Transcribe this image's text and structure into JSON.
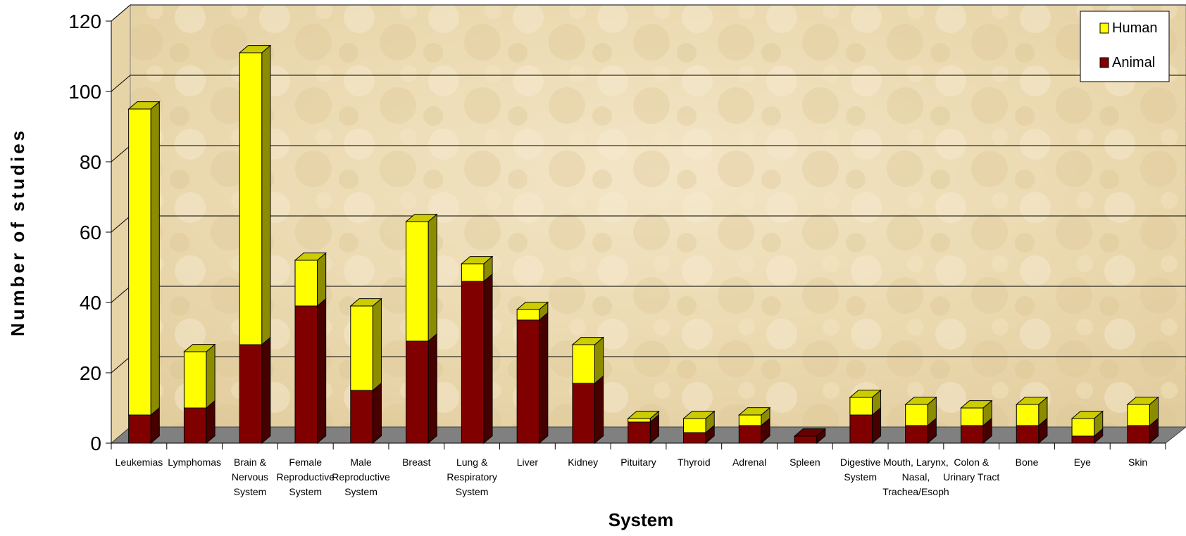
{
  "chart_data": {
    "type": "bar",
    "stacked": true,
    "three_d": true,
    "xlabel": "System",
    "ylabel": "Number of studies",
    "ylim": [
      0,
      120
    ],
    "yticks": [
      "0",
      "20",
      "40",
      "60",
      "80",
      "100",
      "120"
    ],
    "grid": true,
    "legend_position": "top-right",
    "categories": [
      [
        "Leukemias"
      ],
      [
        "Lymphomas"
      ],
      [
        "Brain &",
        "Nervous",
        "System"
      ],
      [
        "Female",
        "Reproductive",
        "System"
      ],
      [
        "Male",
        "Reproductive",
        "System"
      ],
      [
        "Breast"
      ],
      [
        "Lung &",
        "Respiratory",
        "System"
      ],
      [
        "Liver"
      ],
      [
        "Kidney"
      ],
      [
        "Pituitary"
      ],
      [
        "Thyroid"
      ],
      [
        "Adrenal"
      ],
      [
        "Spleen"
      ],
      [
        "Digestive",
        "System"
      ],
      [
        "Mouth, Larynx,",
        "Nasal,",
        "Trachea/Esoph"
      ],
      [
        "Colon &",
        "Urinary Tract"
      ],
      [
        "Bone"
      ],
      [
        "Eye"
      ],
      [
        "Skin"
      ]
    ],
    "series": [
      {
        "name": "Animal",
        "color": "#800000",
        "values": [
          8,
          10,
          28,
          39,
          15,
          29,
          46,
          35,
          17,
          6,
          3,
          5,
          2,
          8,
          5,
          5,
          5,
          2,
          5
        ]
      },
      {
        "name": "Human",
        "color": "#ffff00",
        "values": [
          87,
          16,
          83,
          13,
          24,
          34,
          5,
          3,
          11,
          1,
          4,
          3,
          0,
          5,
          6,
          5,
          6,
          5,
          6
        ]
      }
    ],
    "legend": [
      "Human",
      "Animal"
    ]
  }
}
